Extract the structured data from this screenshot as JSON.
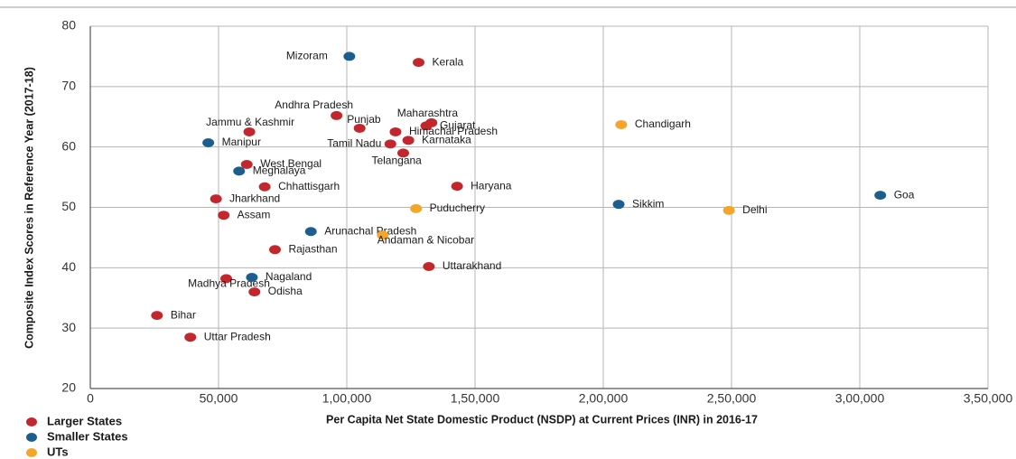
{
  "chart_data": {
    "type": "scatter",
    "x_label": "Per Capita Net State Domestic Product (NSDP) at Current Prices (INR) in 2016-17",
    "y_label": "Composite Index Scores in Reference Year (2017-18)",
    "xlim": [
      0,
      350000
    ],
    "ylim": [
      20,
      80
    ],
    "xticks": [
      0,
      {
        "value": 50000,
        "label": "50,000"
      },
      {
        "value": 100000,
        "label": "1,00,000"
      },
      {
        "value": 150000,
        "label": "1,50,000"
      },
      {
        "value": 200000,
        "label": "2,00,000"
      },
      {
        "value": 250000,
        "label": "2,50,000"
      },
      {
        "value": 300000,
        "label": "3,00,000"
      },
      {
        "value": 350000,
        "label": "3,50,000"
      }
    ],
    "yticks": [
      20,
      30,
      40,
      50,
      60,
      70,
      80
    ],
    "grid": true,
    "legend": "bottom-left",
    "series": [
      {
        "name": "Larger States",
        "color": "#c1272d",
        "labels": [
          "Kerala",
          "Andhra Pradesh",
          "Punjab",
          "Maharashtra",
          "Gujarat",
          "Himachal Pradesh",
          "Karnataka",
          "Tamil Nadu",
          "Telangana",
          "Jammu & Kashmir",
          "West Bengal",
          "Chhattisgarh",
          "Jharkhand",
          "Assam",
          "Haryana",
          "Rajasthan",
          "Uttarakhand",
          "Madhya Pradesh",
          "Odisha",
          "Bihar",
          "Uttar Pradesh"
        ],
        "x": [
          128000,
          96000,
          105000,
          133000,
          131000,
          119000,
          124000,
          117000,
          122000,
          62000,
          61000,
          68000,
          49000,
          52000,
          143000,
          72000,
          132000,
          53000,
          64000,
          26000,
          39000
        ],
        "values": [
          74,
          65.2,
          63.1,
          64,
          63.5,
          62.5,
          61.1,
          60.5,
          59,
          62.5,
          57.1,
          53.4,
          51.4,
          48.7,
          53.5,
          43,
          40.2,
          38.2,
          36,
          32.1,
          28.5
        ]
      },
      {
        "name": "Smaller States",
        "color": "#1c5f8e",
        "labels": [
          "Mizoram",
          "Manipur",
          "Meghalaya",
          "Arunachal Pradesh",
          "Nagaland",
          "Sikkim",
          "Goa"
        ],
        "x": [
          101000,
          46000,
          58000,
          86000,
          63000,
          206000,
          308000
        ],
        "values": [
          75,
          60.7,
          56,
          46,
          38.4,
          50.5,
          52
        ]
      },
      {
        "name": "UTs",
        "color": "#f4a62a",
        "labels": [
          "Chandigarh",
          "Puducherry",
          "Andaman & Nicobar",
          "Delhi"
        ],
        "x": [
          207000,
          127000,
          114000,
          249000
        ],
        "values": [
          63.7,
          49.8,
          45.4,
          49.5
        ]
      }
    ]
  }
}
